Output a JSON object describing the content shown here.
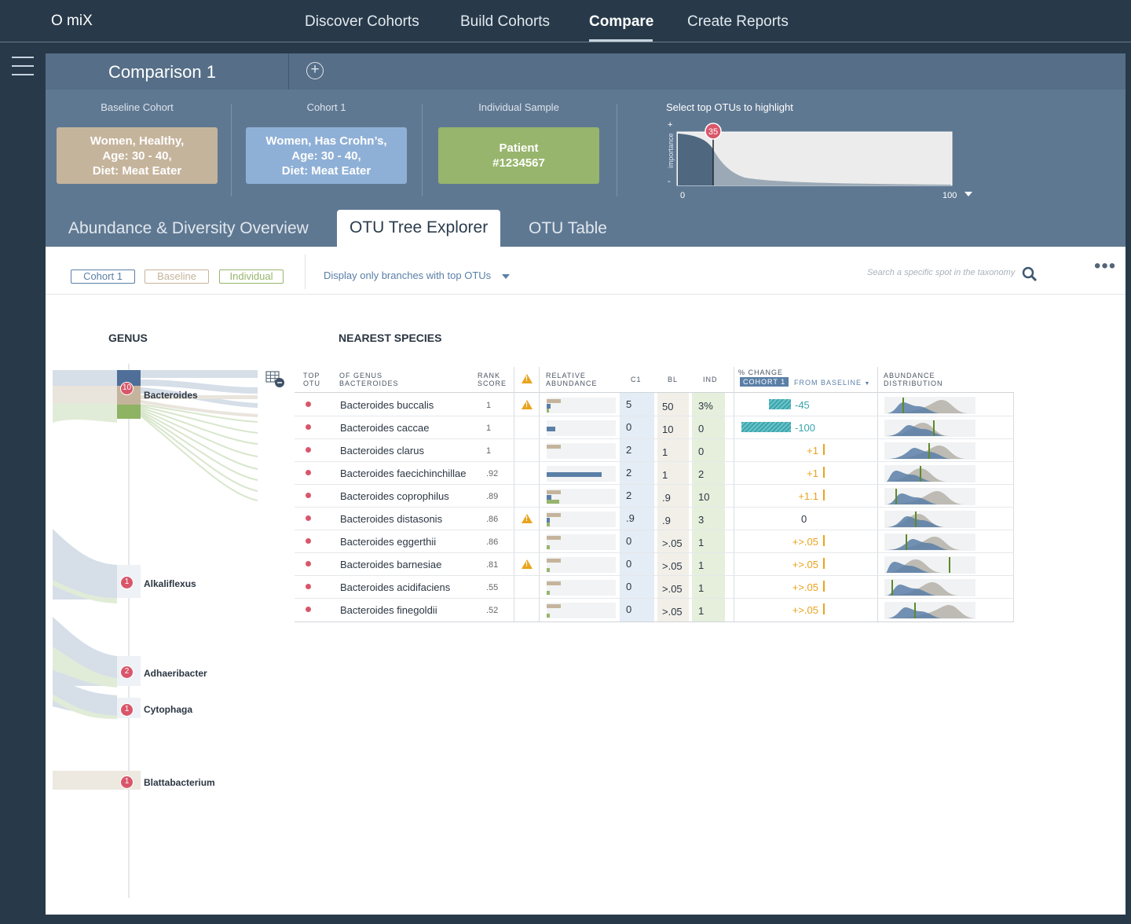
{
  "app": {
    "logo": "O miX"
  },
  "nav": {
    "items": [
      "Discover Cohorts",
      "Build Cohorts",
      "Compare",
      "Create Reports"
    ],
    "active": "Compare"
  },
  "comparison": {
    "title": "Comparison 1",
    "add_symbol": "+"
  },
  "cohorts": {
    "baseline": {
      "label": "Baseline Cohort",
      "lines": [
        "Women, Healthy,",
        "Age: 30 - 40,",
        "Diet: Meat Eater"
      ],
      "color": "#c5b49c"
    },
    "cohort1": {
      "label": "Cohort 1",
      "lines": [
        "Women, Has Crohn’s,",
        "Age: 30 - 40,",
        "Diet: Meat Eater"
      ],
      "color": "#8fb0d6"
    },
    "individual": {
      "label": "Individual Sample",
      "lines": [
        "Patient",
        "#1234567"
      ],
      "color": "#97b56c"
    }
  },
  "otu_selector": {
    "label": "Select top OTUs to highlight",
    "axis_label": "importance",
    "plus": "+",
    "minus": "-",
    "min": "0",
    "max": "100",
    "value": "35"
  },
  "tabs": [
    "Abundance & Diversity Overview",
    "OTU Tree Explorer",
    "OTU Table"
  ],
  "active_tab": "OTU Tree Explorer",
  "filters": {
    "pills": [
      {
        "label": "Cohort 1",
        "color": "#5a7fa7"
      },
      {
        "label": "Baseline",
        "color": "#c5b49c"
      },
      {
        "label": "Individual",
        "color": "#97b56c"
      }
    ],
    "branch_filter": "Display only branches with top OTUs",
    "search_placeholder": "Search a specific spot in the taxonomy",
    "more": "•••"
  },
  "genus_header": "GENUS",
  "species_header": "NEAREST SPECIES",
  "genera": [
    {
      "name": "Bacteroides",
      "count": "10"
    },
    {
      "name": "Alkaliflexus",
      "count": "1"
    },
    {
      "name": "Adhaeribacter",
      "count": "2"
    },
    {
      "name": "Cytophaga",
      "count": "1"
    },
    {
      "name": "Blattabacterium",
      "count": "1"
    }
  ],
  "table": {
    "headers": {
      "top_otu": [
        "TOP",
        "OTU"
      ],
      "species": [
        "OF GENUS",
        "BACTEROIDES"
      ],
      "rank": [
        "RANK",
        "SCORE"
      ],
      "rel": [
        "RELATIVE",
        "ABUNDANCE"
      ],
      "c1": "C1",
      "bl": "BL",
      "ind": "IND",
      "change_top": "% CHANGE",
      "change_tag": "COHORT 1",
      "change_from": "FROM BASELINE",
      "dist": [
        "ABUNDANCE",
        "DISTRIBUTION"
      ]
    },
    "rows": [
      {
        "species": "Bacteroides buccalis",
        "rank": "1",
        "warn": true,
        "c1": "5",
        "bl": "50",
        "ind": "3%",
        "change": "-45",
        "change_value": -45,
        "rel": {
          "baseline": 0.2,
          "cohort1": 0.06,
          "individual": 0.03
        },
        "marker": 0.18
      },
      {
        "species": "Bacteroides caccae",
        "rank": "1",
        "warn": false,
        "c1": "0",
        "bl": "10",
        "ind": "0",
        "change": "-100",
        "change_value": -100,
        "rel": {
          "baseline": 0,
          "cohort1": 0.12,
          "individual": 0
        },
        "marker": 0.54
      },
      {
        "species": "Bacteroides clarus",
        "rank": "1",
        "warn": false,
        "c1": "2",
        "bl": "1",
        "ind": "0",
        "change": "+1",
        "change_value": 1,
        "rel": {
          "baseline": 0.2,
          "cohort1": 0,
          "individual": 0
        },
        "marker": 0.48
      },
      {
        "species": "Bacteroides faecichinchillae",
        "rank": ".92",
        "warn": false,
        "c1": "2",
        "bl": "1",
        "ind": "2",
        "change": "+1",
        "change_value": 1,
        "rel": {
          "baseline": 0,
          "cohort1": 0.8,
          "individual": 0
        },
        "marker": 0.38
      },
      {
        "species": "Bacteroides coprophilus",
        "rank": ".89",
        "warn": false,
        "c1": "2",
        "bl": ".9",
        "ind": "10",
        "change": "+1.1",
        "change_value": 1.1,
        "rel": {
          "baseline": 0.2,
          "cohort1": 0.07,
          "individual": 0.18
        },
        "marker": 0.1
      },
      {
        "species": "Bacteroides distasonis",
        "rank": ".86",
        "warn": true,
        "c1": ".9",
        "bl": ".9",
        "ind": "3",
        "change": "0",
        "change_value": 0,
        "rel": {
          "baseline": 0.2,
          "cohort1": 0.04,
          "individual": 0.05
        },
        "marker": 0.33
      },
      {
        "species": "Bacteroides eggerthii",
        "rank": ".86",
        "warn": false,
        "c1": "0",
        "bl": ">.05",
        "ind": "1",
        "change": "+>.05",
        "change_value": 0.05,
        "rel": {
          "baseline": 0.2,
          "cohort1": 0,
          "individual": 0.04
        },
        "marker": 0.22
      },
      {
        "species": "Bacteroides barnesiae",
        "rank": ".81",
        "warn": true,
        "c1": "0",
        "bl": ">.05",
        "ind": "1",
        "change": "+>.05",
        "change_value": 0.05,
        "rel": {
          "baseline": 0.2,
          "cohort1": 0,
          "individual": 0.04
        },
        "marker": 0.72
      },
      {
        "species": "Bacteroides acidifaciens",
        "rank": ".55",
        "warn": false,
        "c1": "0",
        "bl": ">.05",
        "ind": "1",
        "change": "+>.05",
        "change_value": 0.05,
        "rel": {
          "baseline": 0.2,
          "cohort1": 0,
          "individual": 0.04
        },
        "marker": 0.05
      },
      {
        "species": "Bacteroides finegoldii",
        "rank": ".52",
        "warn": false,
        "c1": "0",
        "bl": ">.05",
        "ind": "1",
        "change": "+>.05",
        "change_value": 0.05,
        "rel": {
          "baseline": 0.2,
          "cohort1": 0,
          "individual": 0.04
        },
        "marker": 0.32
      }
    ]
  },
  "colors": {
    "cohort1": "#5a7fa7",
    "baseline": "#c5b49c",
    "individual": "#97b56c",
    "badge": "#d9566a",
    "negative": "#3aa5ad",
    "positive": "#e9a31d",
    "warn": "#e9a31d",
    "marker": "#5c8a2a"
  }
}
